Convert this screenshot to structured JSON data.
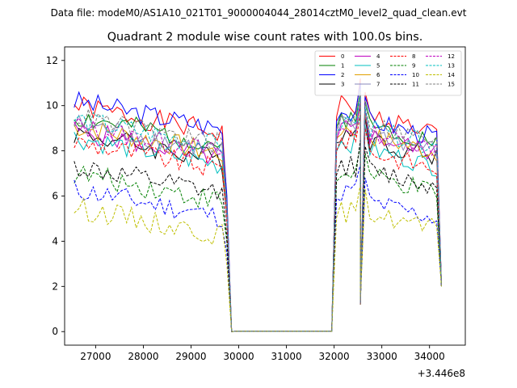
{
  "chart_data": {
    "type": "line",
    "suptitle": "Data file: modeM0/AS1A10_021T01_9000004044_28014cztM0_level2_quad_clean.evt",
    "title": "Quadrant 2 module wise count rates with 100.0s bins.",
    "xlabel": "",
    "ylabel": "",
    "x_offset_label": "+3.446e8",
    "xlim": [
      26350,
      34750
    ],
    "ylim": [
      -0.6,
      12.6
    ],
    "x_ticks": [
      27000,
      28000,
      29000,
      30000,
      31000,
      32000,
      33000,
      34000
    ],
    "x_tick_labels": [
      "27000",
      "28000",
      "29000",
      "30000",
      "31000",
      "32000",
      "33000",
      "34000"
    ],
    "y_ticks": [
      0,
      2,
      4,
      6,
      8,
      10,
      12
    ],
    "y_tick_labels": [
      "0",
      "2",
      "4",
      "6",
      "8",
      "10",
      "12"
    ],
    "legend_position": "top-right",
    "segments": [
      {
        "start": 26550,
        "step": 100,
        "count": 33
      },
      {
        "start": 32050,
        "step": 100,
        "count": 6
      },
      {
        "start": 32650,
        "step": 100,
        "count": 17
      }
    ],
    "gap_points": [
      [
        29850,
        0
      ],
      [
        29950,
        0.02
      ],
      [
        30050,
        0.02
      ],
      [
        31950,
        0.02
      ]
    ],
    "series": [
      {
        "name": "0",
        "color": "#ff0000",
        "dash": false,
        "pre": 9.1,
        "post1": 10.0,
        "post2": 9.0,
        "seed": 1
      },
      {
        "name": "1",
        "color": "#008000",
        "dash": false,
        "pre": 8.6,
        "post1": 9.5,
        "post2": 8.6,
        "seed": 2
      },
      {
        "name": "2",
        "color": "#0000ff",
        "dash": false,
        "pre": 9.3,
        "post1": 9.8,
        "post2": 8.8,
        "seed": 3
      },
      {
        "name": "3",
        "color": "#000000",
        "dash": false,
        "pre": 7.9,
        "post1": 8.8,
        "post2": 7.9,
        "seed": 4
      },
      {
        "name": "4",
        "color": "#bf00bf",
        "dash": false,
        "pre": 8.0,
        "post1": 8.9,
        "post2": 8.1,
        "seed": 5
      },
      {
        "name": "5",
        "color": "#00bfbf",
        "dash": false,
        "pre": 7.7,
        "post1": 8.4,
        "post2": 7.5,
        "seed": 6
      },
      {
        "name": "6",
        "color": "#e0a000",
        "dash": false,
        "pre": 8.2,
        "post1": 9.0,
        "post2": 8.1,
        "seed": 7
      },
      {
        "name": "7",
        "color": "#8888bb",
        "dash": false,
        "pre": 8.3,
        "post1": 9.1,
        "post2": 8.2,
        "seed": 8
      },
      {
        "name": "8",
        "color": "#ff0000",
        "dash": true,
        "pre": 7.5,
        "post1": 8.4,
        "post2": 7.4,
        "seed": 9
      },
      {
        "name": "9",
        "color": "#008000",
        "dash": true,
        "pre": 6.1,
        "post1": 7.0,
        "post2": 6.3,
        "seed": 10
      },
      {
        "name": "10",
        "color": "#0000ff",
        "dash": true,
        "pre": 5.4,
        "post1": 6.2,
        "post2": 5.2,
        "seed": 11
      },
      {
        "name": "11",
        "color": "#000000",
        "dash": true,
        "pre": 6.4,
        "post1": 7.3,
        "post2": 6.6,
        "seed": 12
      },
      {
        "name": "12",
        "color": "#bf00bf",
        "dash": true,
        "pre": 8.2,
        "post1": 9.0,
        "post2": 8.3,
        "seed": 13
      },
      {
        "name": "13",
        "color": "#00bfbf",
        "dash": true,
        "pre": 8.5,
        "post1": 9.3,
        "post2": 8.4,
        "seed": 14
      },
      {
        "name": "14",
        "color": "#bfbf00",
        "dash": true,
        "pre": 4.6,
        "post1": 5.3,
        "post2": 4.7,
        "seed": 15
      },
      {
        "name": "15",
        "color": "#7f7f7f",
        "dash": true,
        "pre": 8.6,
        "post1": 9.4,
        "post2": 8.6,
        "seed": 16
      }
    ]
  }
}
